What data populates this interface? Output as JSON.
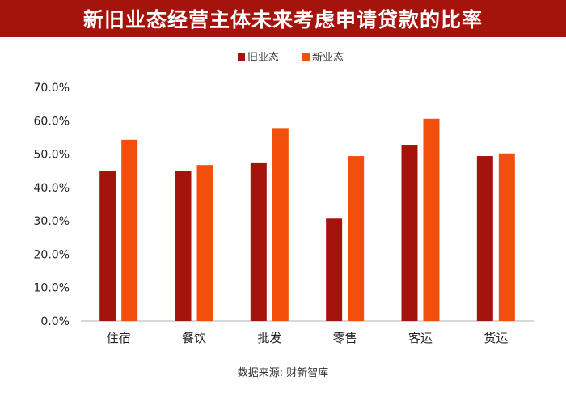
{
  "chart_data": {
    "type": "bar",
    "title": "新旧业态经营主体未来考虑申请贷款的比率",
    "categories": [
      "住宿",
      "餐饮",
      "批发",
      "零售",
      "客运",
      "货运"
    ],
    "series": [
      {
        "name": "旧业态",
        "values": [
          45.0,
          45.0,
          47.5,
          30.7,
          52.8,
          49.4
        ],
        "color": "#a4140c"
      },
      {
        "name": "新业态",
        "values": [
          54.3,
          46.7,
          57.8,
          49.4,
          60.6,
          50.2
        ],
        "color": "#f24f0c"
      }
    ],
    "yticks": [
      "0.0%",
      "10.0%",
      "20.0%",
      "30.0%",
      "40.0%",
      "50.0%",
      "60.0%",
      "70.0%"
    ],
    "ylim": [
      0,
      70
    ],
    "xlabel": "",
    "ylabel": "",
    "legend_position": "top-center",
    "grid": false
  },
  "source": "数据来源: 财新智库"
}
